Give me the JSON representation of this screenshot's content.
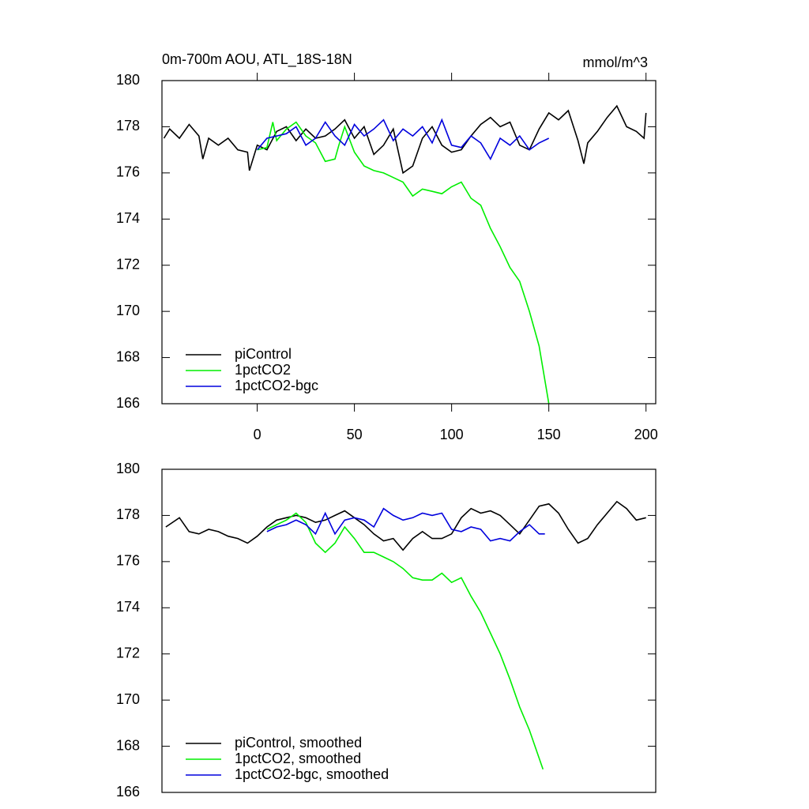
{
  "chart_data": [
    {
      "type": "line",
      "title": "0m-700m AOU, ATL_18S-18N",
      "units": "mmol/m^3",
      "xlim": [
        -49,
        205
      ],
      "xticks": [
        0,
        50,
        100,
        150,
        200
      ],
      "ylim": [
        166,
        180
      ],
      "yticks": [
        166,
        168,
        170,
        172,
        174,
        176,
        178,
        180
      ],
      "legend": "bottom-left",
      "series": [
        {
          "name": "piControl",
          "color": "#000000",
          "x": [
            -48,
            -45,
            -40,
            -35,
            -30,
            -28,
            -25,
            -20,
            -15,
            -10,
            -5,
            -4,
            0,
            5,
            10,
            15,
            20,
            25,
            30,
            35,
            40,
            45,
            50,
            55,
            60,
            65,
            70,
            75,
            80,
            85,
            90,
            95,
            100,
            105,
            110,
            115,
            120,
            125,
            130,
            135,
            140,
            145,
            150,
            155,
            160,
            165,
            168,
            170,
            175,
            180,
            185,
            190,
            195,
            199,
            200
          ],
          "values": [
            177.5,
            177.9,
            177.5,
            178.1,
            177.6,
            176.6,
            177.5,
            177.2,
            177.5,
            177.0,
            176.9,
            176.1,
            177.2,
            177.0,
            177.8,
            178.0,
            177.4,
            177.9,
            177.5,
            177.6,
            177.9,
            178.3,
            177.5,
            178.0,
            176.8,
            177.2,
            177.9,
            176.0,
            176.3,
            177.5,
            178.0,
            177.2,
            176.9,
            177.0,
            177.6,
            178.1,
            178.4,
            178.0,
            178.2,
            177.2,
            177.0,
            177.9,
            178.6,
            178.3,
            178.7,
            177.4,
            176.4,
            177.3,
            177.8,
            178.4,
            178.9,
            178.0,
            177.8,
            177.5,
            178.6
          ]
        },
        {
          "name": "1pctCO2",
          "color": "#00ee00",
          "x": [
            0,
            5,
            8,
            10,
            15,
            20,
            25,
            30,
            35,
            40,
            42,
            45,
            50,
            55,
            60,
            65,
            70,
            75,
            80,
            85,
            90,
            95,
            100,
            105,
            110,
            115,
            120,
            125,
            130,
            135,
            140,
            145,
            150
          ],
          "values": [
            177.0,
            177.1,
            178.2,
            177.4,
            177.9,
            178.2,
            177.6,
            177.3,
            176.5,
            176.6,
            177.2,
            178.0,
            176.9,
            176.3,
            176.1,
            176.0,
            175.8,
            175.6,
            175.0,
            175.3,
            175.2,
            175.1,
            175.4,
            175.6,
            174.9,
            174.6,
            173.6,
            172.8,
            171.9,
            171.3,
            170.0,
            168.5,
            166.0
          ]
        },
        {
          "name": "1pctCO2-bgc",
          "color": "#0000dd",
          "x": [
            0,
            5,
            10,
            15,
            20,
            25,
            30,
            35,
            40,
            45,
            50,
            55,
            60,
            65,
            70,
            75,
            80,
            85,
            90,
            95,
            100,
            105,
            110,
            115,
            120,
            125,
            130,
            135,
            140,
            145,
            150
          ],
          "values": [
            177.0,
            177.5,
            177.6,
            177.7,
            178.0,
            177.2,
            177.5,
            178.2,
            177.6,
            177.2,
            178.1,
            177.6,
            177.9,
            178.3,
            177.4,
            177.9,
            177.6,
            178.0,
            177.3,
            178.3,
            177.2,
            177.1,
            177.6,
            177.3,
            176.6,
            177.5,
            177.2,
            177.6,
            177.0,
            177.3,
            177.5
          ]
        }
      ]
    },
    {
      "type": "line",
      "xlim": [
        -49,
        205
      ],
      "ylim": [
        166,
        180
      ],
      "yticks": [
        166,
        168,
        170,
        172,
        174,
        176,
        178,
        180
      ],
      "legend": "bottom-left",
      "series": [
        {
          "name": "piControl, smoothed",
          "color": "#000000",
          "x": [
            -47,
            -40,
            -35,
            -30,
            -25,
            -20,
            -15,
            -10,
            -5,
            0,
            5,
            10,
            15,
            20,
            25,
            30,
            35,
            40,
            45,
            50,
            55,
            60,
            65,
            70,
            75,
            80,
            85,
            90,
            95,
            100,
            105,
            110,
            115,
            120,
            125,
            130,
            135,
            140,
            145,
            150,
            155,
            160,
            165,
            170,
            175,
            180,
            185,
            190,
            195,
            200
          ],
          "values": [
            177.5,
            177.9,
            177.3,
            177.2,
            177.4,
            177.3,
            177.1,
            177.0,
            176.8,
            177.1,
            177.5,
            177.8,
            177.9,
            178.0,
            177.9,
            177.7,
            177.8,
            178.0,
            178.2,
            177.9,
            177.6,
            177.2,
            176.9,
            177.0,
            176.5,
            177.0,
            177.3,
            177.0,
            177.0,
            177.2,
            177.9,
            178.3,
            178.1,
            178.2,
            178.0,
            177.6,
            177.2,
            177.8,
            178.4,
            178.5,
            178.1,
            177.4,
            176.8,
            177.0,
            177.6,
            178.1,
            178.6,
            178.3,
            177.8,
            177.9
          ]
        },
        {
          "name": "1pctCO2, smoothed",
          "color": "#00ee00",
          "x": [
            5,
            10,
            15,
            20,
            25,
            30,
            35,
            40,
            45,
            50,
            55,
            60,
            65,
            70,
            75,
            80,
            85,
            90,
            95,
            100,
            105,
            110,
            115,
            120,
            125,
            130,
            135,
            140,
            147
          ],
          "values": [
            177.4,
            177.6,
            177.8,
            178.1,
            177.7,
            176.8,
            176.4,
            176.8,
            177.5,
            177.0,
            176.4,
            176.4,
            176.2,
            176.0,
            175.7,
            175.3,
            175.2,
            175.2,
            175.5,
            175.1,
            175.3,
            174.5,
            173.8,
            172.9,
            172.0,
            170.9,
            169.7,
            168.7,
            167.0
          ]
        },
        {
          "name": "1pctCO2-bgc, smoothed",
          "color": "#0000dd",
          "x": [
            5,
            10,
            15,
            20,
            25,
            30,
            35,
            40,
            45,
            50,
            55,
            60,
            65,
            70,
            75,
            80,
            85,
            90,
            95,
            100,
            105,
            110,
            115,
            120,
            125,
            130,
            135,
            140,
            145,
            148
          ],
          "values": [
            177.3,
            177.5,
            177.6,
            177.8,
            177.6,
            177.2,
            178.1,
            177.2,
            177.8,
            177.9,
            177.8,
            177.5,
            178.3,
            178.0,
            177.8,
            177.9,
            178.1,
            178.0,
            178.1,
            177.4,
            177.3,
            177.5,
            177.4,
            176.9,
            177.0,
            176.9,
            177.3,
            177.6,
            177.2,
            177.2
          ]
        }
      ]
    }
  ]
}
